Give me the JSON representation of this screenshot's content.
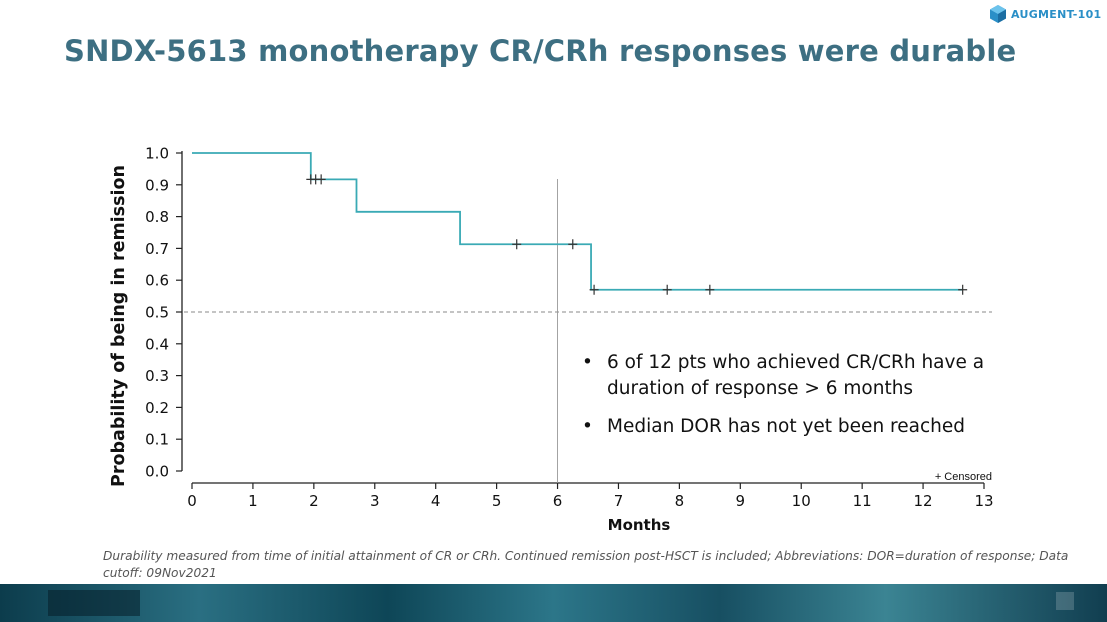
{
  "title": "SNDX-5613 monotherapy CR/CRh responses were durable",
  "logo": {
    "text": "AUGMENT-101",
    "icon": "hexagon-cube-icon",
    "color": "#2a8fc7"
  },
  "colors": {
    "title": "#3d6f82",
    "curve": "#3aaab5",
    "reference": "#888888"
  },
  "chart_data": {
    "type": "line",
    "subtype": "kaplan-meier-step",
    "title": "",
    "xlabel": "Months",
    "ylabel": "Probability of being in remission",
    "xlim": [
      0,
      13
    ],
    "ylim": [
      0.0,
      1.0
    ],
    "xticks": [
      0,
      1,
      2,
      3,
      4,
      5,
      6,
      7,
      8,
      9,
      10,
      11,
      12,
      13
    ],
    "yticks": [
      "0.0",
      "0.1",
      "0.2",
      "0.3",
      "0.4",
      "0.5",
      "0.6",
      "0.7",
      "0.8",
      "0.9",
      "1.0"
    ],
    "grid": false,
    "series": [
      {
        "steps": [
          {
            "x": 0,
            "y": 1.0
          },
          {
            "x": 1.95,
            "y": 0.917
          },
          {
            "x": 2.7,
            "y": 0.815
          },
          {
            "x": 4.4,
            "y": 0.713
          },
          {
            "x": 6.55,
            "y": 0.57
          }
        ],
        "end_x": 12.65,
        "censored": [
          {
            "x": 1.95,
            "y": 0.917
          },
          {
            "x": 2.03,
            "y": 0.917
          },
          {
            "x": 2.12,
            "y": 0.917
          },
          {
            "x": 5.33,
            "y": 0.713
          },
          {
            "x": 6.25,
            "y": 0.713
          },
          {
            "x": 6.6,
            "y": 0.57
          },
          {
            "x": 7.8,
            "y": 0.57
          },
          {
            "x": 8.5,
            "y": 0.57
          },
          {
            "x": 12.65,
            "y": 0.57
          }
        ]
      }
    ],
    "reference_lines": {
      "horizontal_y": 0.5,
      "vertical_x": 6
    },
    "legend": {
      "text": "+ Censored",
      "placement": "bottom-right"
    }
  },
  "bullets": [
    "6 of 12 pts who achieved CR/CRh have a duration of response > 6 months",
    "Median DOR has not yet been reached"
  ],
  "bullet_symbol": "•",
  "footnote": "Durability measured from time of initial attainment of CR or CRh. Continued remission post-HSCT is included; Abbreviations: DOR=duration of response; Data cutoff: 09Nov2021"
}
